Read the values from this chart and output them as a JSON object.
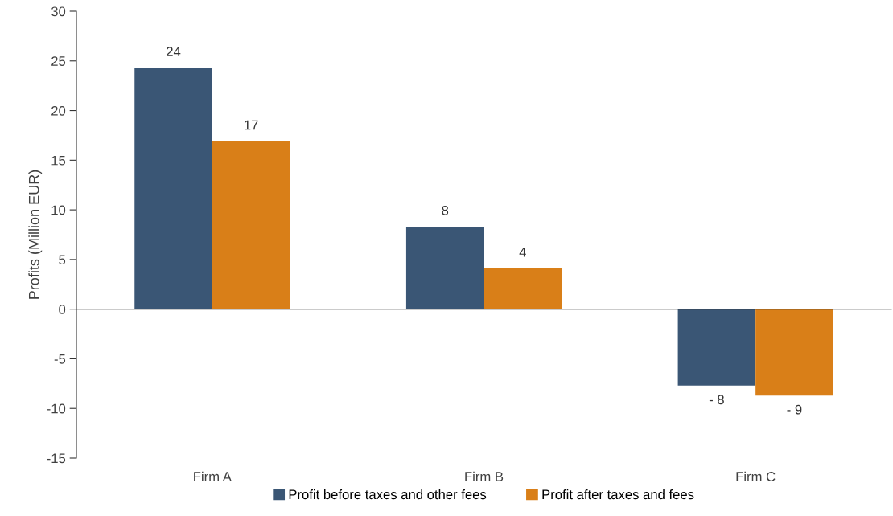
{
  "chart_data": {
    "type": "bar",
    "ylabel": "Profits (Million EUR)",
    "categories": [
      "Firm A",
      "Firm B",
      "Firm C"
    ],
    "series": [
      {
        "name": "Profit before taxes and other fees",
        "color": "#3a5675",
        "values": [
          24.3,
          8.3,
          -7.7
        ],
        "value_labels": [
          "24",
          "8",
          "- 8"
        ]
      },
      {
        "name": "Profit after taxes and fees",
        "color": "#d97f18",
        "values": [
          16.9,
          4.1,
          -8.7
        ],
        "value_labels": [
          "17",
          "4",
          "- 9"
        ]
      }
    ],
    "ylim": [
      -15,
      30
    ],
    "yticks": [
      -15,
      -10,
      -5,
      0,
      5,
      10,
      15,
      20,
      25,
      30
    ],
    "legend": "bottom"
  }
}
